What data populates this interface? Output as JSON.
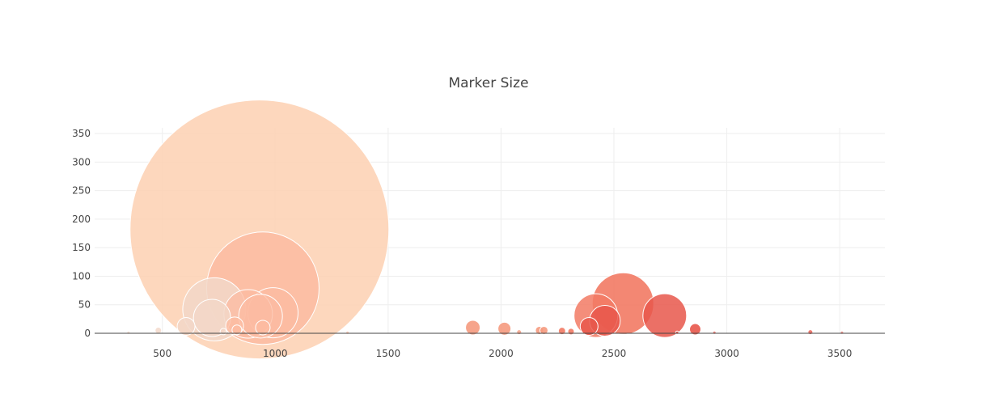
{
  "chart_data": {
    "type": "scatter",
    "title": "Marker Size",
    "xlabel": "",
    "ylabel": "",
    "xlim": [
      200,
      3700
    ],
    "ylim": [
      0,
      360
    ],
    "x_ticks": [
      500,
      1000,
      1500,
      2000,
      2500,
      3000,
      3500
    ],
    "y_ticks": [
      0,
      50,
      100,
      150,
      200,
      250,
      300,
      350
    ],
    "grid": true,
    "legend": "none",
    "marker_size_encoding": "bubble area",
    "colors": {
      "light_peach": "#fdd0b2",
      "peach": "#fcbba1",
      "beige": "#f2d7c8",
      "salmon": "#f59a7e",
      "coral": "#f27a64",
      "red": "#e8574b",
      "grid": "#eeeeee",
      "axis": "#444444"
    },
    "points": [
      {
        "x": 930,
        "y": 182,
        "size": 320,
        "color": "#fdd0b2",
        "opacity": 0.85
      },
      {
        "x": 945,
        "y": 79,
        "size": 139,
        "color": "#fcbba1",
        "opacity": 0.85
      },
      {
        "x": 730,
        "y": 42,
        "size": 78,
        "color": "#f2d7c8",
        "opacity": 0.85
      },
      {
        "x": 990,
        "y": 36,
        "size": 62,
        "color": "#fcbba1",
        "opacity": 0.85
      },
      {
        "x": 880,
        "y": 34,
        "size": 60,
        "color": "#fcbba1",
        "opacity": 0.75
      },
      {
        "x": 935,
        "y": 30,
        "size": 54,
        "color": "#fcbba1",
        "opacity": 0.75
      },
      {
        "x": 720,
        "y": 27,
        "size": 46,
        "color": "#f2d7c8",
        "opacity": 0.85
      },
      {
        "x": 605,
        "y": 12,
        "size": 22,
        "color": "#f2d7c8",
        "opacity": 0.85
      },
      {
        "x": 820,
        "y": 13,
        "size": 22,
        "color": "#fcbba1",
        "opacity": 0.8
      },
      {
        "x": 945,
        "y": 10,
        "size": 18,
        "color": "#fcbba1",
        "opacity": 0.8
      },
      {
        "x": 830,
        "y": 6,
        "size": 12,
        "color": "#fcbba1",
        "opacity": 0.8
      },
      {
        "x": 482,
        "y": 5,
        "size": 8,
        "color": "#f2d7c8",
        "opacity": 0.8
      },
      {
        "x": 770,
        "y": 3,
        "size": 8,
        "color": "#f2d7c8",
        "opacity": 0.7
      },
      {
        "x": 350,
        "y": 1,
        "size": 4,
        "color": "#f2d7c8",
        "opacity": 0.7
      },
      {
        "x": 1320,
        "y": 1,
        "size": 4,
        "color": "#fcbba1",
        "opacity": 0.7
      },
      {
        "x": 2540,
        "y": 52,
        "size": 76,
        "color": "#f27a64",
        "opacity": 0.9
      },
      {
        "x": 2420,
        "y": 31,
        "size": 54,
        "color": "#f27a64",
        "opacity": 0.85
      },
      {
        "x": 2725,
        "y": 31,
        "size": 54,
        "color": "#e8574b",
        "opacity": 0.85
      },
      {
        "x": 2460,
        "y": 22,
        "size": 38,
        "color": "#e8574b",
        "opacity": 0.85
      },
      {
        "x": 2390,
        "y": 12,
        "size": 22,
        "color": "#e8574b",
        "opacity": 0.85
      },
      {
        "x": 1875,
        "y": 10,
        "size": 18,
        "color": "#f59a7e",
        "opacity": 0.9
      },
      {
        "x": 2015,
        "y": 8,
        "size": 16,
        "color": "#f59a7e",
        "opacity": 0.9
      },
      {
        "x": 2860,
        "y": 7,
        "size": 14,
        "color": "#e8574b",
        "opacity": 0.9
      },
      {
        "x": 2170,
        "y": 5,
        "size": 10,
        "color": "#f59a7e",
        "opacity": 0.9
      },
      {
        "x": 2190,
        "y": 5,
        "size": 10,
        "color": "#f59a7e",
        "opacity": 0.9
      },
      {
        "x": 2270,
        "y": 4,
        "size": 9,
        "color": "#f27a64",
        "opacity": 0.9
      },
      {
        "x": 2310,
        "y": 3,
        "size": 8,
        "color": "#f27a64",
        "opacity": 0.9
      },
      {
        "x": 2080,
        "y": 2,
        "size": 6,
        "color": "#f59a7e",
        "opacity": 0.8
      },
      {
        "x": 3370,
        "y": 2,
        "size": 6,
        "color": "#e8574b",
        "opacity": 0.8
      },
      {
        "x": 2780,
        "y": 1,
        "size": 4,
        "color": "#e8574b",
        "opacity": 0.7
      },
      {
        "x": 2945,
        "y": 1,
        "size": 4,
        "color": "#e8574b",
        "opacity": 0.7
      },
      {
        "x": 3510,
        "y": 1,
        "size": 4,
        "color": "#e8574b",
        "opacity": 0.6
      }
    ]
  }
}
